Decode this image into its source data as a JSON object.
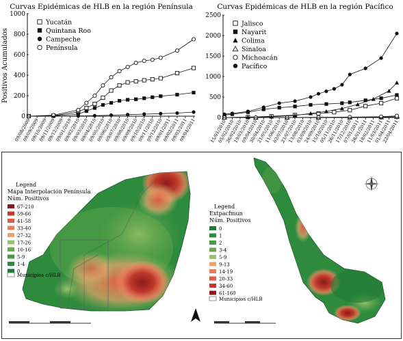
{
  "colors": {
    "line": "#111111",
    "map_scale": [
      "#8b1a1a",
      "#c0392b",
      "#e05a44",
      "#e87c5a",
      "#e8a46c",
      "#9cc06a",
      "#6aa84f",
      "#4a9a45",
      "#2e8b3e",
      "#1f7a35"
    ]
  },
  "chart_data": [
    {
      "type": "line",
      "title": "Curvas Epidémicas de HLB en la región Península",
      "xlabel": "",
      "ylabel": "Positivos Acumulados",
      "ylim": [
        0,
        1000
      ],
      "yticks": [
        "0",
        "200",
        "400",
        "600",
        "800",
        "1000"
      ],
      "legend_position": "top-left",
      "categories": [
        "09/08/2009",
        "09/09/2009",
        "09/10/2009",
        "09/11/2009",
        "09/12/2009",
        "09/01/2010",
        "09/02/2010",
        "09/03/2010",
        "09/04/2010",
        "09/05/2010",
        "09/06/2010",
        "09/07/2010",
        "09/08/2010",
        "09/09/2010",
        "09/10/2010",
        "09/11/2010",
        "09/12/2010",
        "09/01/2011",
        "09/02/2011",
        "09/03/2011",
        "09/04/2011"
      ],
      "series": [
        {
          "name": "Yucatán",
          "marker": "square-open",
          "points": [
            [
              0,
              0
            ],
            [
              3,
              5
            ],
            [
              6,
              40
            ],
            [
              7,
              80
            ],
            [
              8,
              120
            ],
            [
              9,
              180
            ],
            [
              10,
              250
            ],
            [
              11,
              300
            ],
            [
              12,
              330
            ],
            [
              13,
              340
            ],
            [
              14,
              350
            ],
            [
              15,
              360
            ],
            [
              16,
              370
            ],
            [
              18,
              420
            ],
            [
              20,
              470
            ]
          ]
        },
        {
          "name": "Quintana Roo",
          "marker": "square-filled",
          "points": [
            [
              0,
              0
            ],
            [
              3,
              3
            ],
            [
              6,
              20
            ],
            [
              7,
              50
            ],
            [
              8,
              80
            ],
            [
              9,
              110
            ],
            [
              10,
              130
            ],
            [
              11,
              150
            ],
            [
              12,
              160
            ],
            [
              13,
              165
            ],
            [
              14,
              175
            ],
            [
              15,
              185
            ],
            [
              16,
              195
            ],
            [
              18,
              210
            ],
            [
              20,
              230
            ]
          ]
        },
        {
          "name": "Campeche",
          "marker": "circle-filled",
          "points": [
            [
              0,
              0
            ],
            [
              3,
              0
            ],
            [
              6,
              2
            ],
            [
              8,
              5
            ],
            [
              10,
              10
            ],
            [
              12,
              15
            ],
            [
              14,
              20
            ],
            [
              16,
              25
            ],
            [
              18,
              30
            ],
            [
              20,
              40
            ]
          ]
        },
        {
          "name": "Península",
          "marker": "circle-open",
          "points": [
            [
              0,
              0
            ],
            [
              3,
              10
            ],
            [
              6,
              60
            ],
            [
              7,
              130
            ],
            [
              8,
              200
            ],
            [
              9,
              300
            ],
            [
              10,
              380
            ],
            [
              11,
              440
            ],
            [
              12,
              480
            ],
            [
              13,
              520
            ],
            [
              14,
              540
            ],
            [
              15,
              550
            ],
            [
              16,
              570
            ],
            [
              18,
              640
            ],
            [
              20,
              750
            ]
          ]
        }
      ]
    },
    {
      "type": "line",
      "title": "Curvas Epidémicas de HLB en la región Pacífico",
      "xlabel": "",
      "ylabel": "",
      "ylim": [
        0,
        2500
      ],
      "yticks": [
        "0",
        "500",
        "1000",
        "1500",
        "2000",
        "2500"
      ],
      "legend_position": "top-left",
      "categories": [
        "15/01/2010",
        "05/02/2010",
        "26/02/2010",
        "19/03/2010",
        "09/04/2010",
        "30/04/2010",
        "21/05/2010",
        "11/06/2010",
        "02/07/2010",
        "23/07/2010",
        "13/08/2010",
        "03/09/2010",
        "24/09/2010",
        "15/10/2010",
        "05/11/2010",
        "26/11/2010",
        "17/12/2010",
        "07/01/2011",
        "28/01/2011",
        "18/02/2011",
        "11/03/2011",
        "01/04/2011",
        "22/04/2011"
      ],
      "series": [
        {
          "name": "Jalisco",
          "marker": "square-open",
          "points": [
            [
              0,
              0
            ],
            [
              3,
              10
            ],
            [
              6,
              30
            ],
            [
              9,
              60
            ],
            [
              12,
              100
            ],
            [
              14,
              130
            ],
            [
              16,
              180
            ],
            [
              18,
              280
            ],
            [
              20,
              350
            ],
            [
              22,
              470
            ]
          ]
        },
        {
          "name": "Nayarit",
          "marker": "square-filled",
          "points": [
            [
              0,
              60
            ],
            [
              1,
              80
            ],
            [
              3,
              130
            ],
            [
              5,
              200
            ],
            [
              7,
              240
            ],
            [
              9,
              270
            ],
            [
              11,
              310
            ],
            [
              13,
              330
            ],
            [
              15,
              350
            ],
            [
              16,
              370
            ],
            [
              18,
              420
            ],
            [
              20,
              470
            ],
            [
              22,
              550
            ]
          ]
        },
        {
          "name": "Colima",
          "marker": "triangle-filled",
          "points": [
            [
              0,
              0
            ],
            [
              3,
              10
            ],
            [
              6,
              20
            ],
            [
              9,
              50
            ],
            [
              11,
              100
            ],
            [
              13,
              150
            ],
            [
              15,
              220
            ],
            [
              17,
              320
            ],
            [
              19,
              450
            ],
            [
              21,
              650
            ],
            [
              22,
              850
            ]
          ]
        },
        {
          "name": "Sinaloa",
          "marker": "triangle-open",
          "points": [
            [
              0,
              0
            ],
            [
              4,
              0
            ],
            [
              8,
              0
            ],
            [
              12,
              0
            ],
            [
              16,
              5
            ],
            [
              20,
              10
            ],
            [
              22,
              20
            ]
          ]
        },
        {
          "name": "Michoacán",
          "marker": "circle-open",
          "points": [
            [
              0,
              0
            ],
            [
              4,
              0
            ],
            [
              8,
              2
            ],
            [
              12,
              5
            ],
            [
              16,
              10
            ],
            [
              20,
              20
            ],
            [
              22,
              40
            ]
          ]
        },
        {
          "name": "Pacífico",
          "marker": "circle-filled",
          "points": [
            [
              0,
              80
            ],
            [
              1,
              100
            ],
            [
              3,
              150
            ],
            [
              5,
              250
            ],
            [
              7,
              350
            ],
            [
              9,
              400
            ],
            [
              11,
              500
            ],
            [
              12,
              580
            ],
            [
              13,
              640
            ],
            [
              14,
              700
            ],
            [
              15,
              800
            ],
            [
              16,
              1050
            ],
            [
              18,
              1200
            ],
            [
              20,
              1450
            ],
            [
              22,
              2050
            ]
          ]
        }
      ]
    }
  ],
  "maps": {
    "peninsula": {
      "legend_title": "Legend",
      "legend_subtitle1": "Mapa Interpolación Península",
      "legend_subtitle2": "Núm. Positivos",
      "classes": [
        "67-210",
        "59-66",
        "41-58",
        "33-40",
        "27-32",
        "17-26",
        "10-16",
        "5-9",
        "1-4",
        "0"
      ],
      "municipios_label": "Municipios c/HLB"
    },
    "pacifico": {
      "legend_title": "Legend",
      "legend_subtitle1": "Extpacfmun",
      "legend_subtitle2": "Núm. Positivos",
      "classes": [
        "0",
        "1",
        "2",
        "3-4",
        "5-9",
        "9-13",
        "14-19",
        "20-33",
        "34-60",
        "61-160"
      ],
      "municipios_label": "Municipios c/HLB"
    }
  }
}
